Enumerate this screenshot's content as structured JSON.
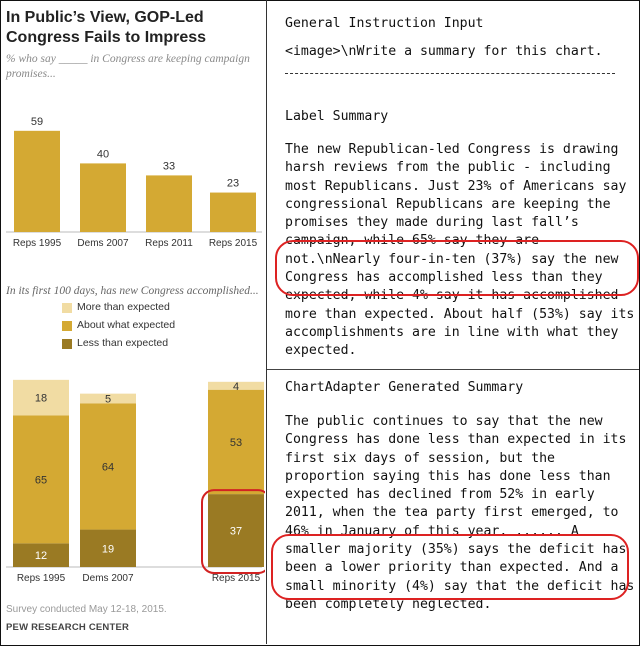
{
  "left": {
    "title": "In Public’s View, GOP-Led Congress Fails to Impress",
    "subtitle": "% who say _____ in Congress are keeping campaign promises...",
    "subtitle2": "In its first 100 days, has new Congress accomplished...",
    "footnote": "Survey conducted May 12-18, 2015.",
    "source": "PEW RESEARCH CENTER"
  },
  "chart_data": [
    {
      "type": "bar",
      "title": "% who say _____ in Congress are keeping campaign promises...",
      "categories": [
        "Reps 1995",
        "Dems 2007",
        "Reps 2011",
        "Reps 2015"
      ],
      "values": [
        59,
        40,
        33,
        23
      ],
      "ylim": [
        0,
        70
      ],
      "color": "#d4a933"
    },
    {
      "type": "bar",
      "stacked": true,
      "title": "In its first 100 days, has new Congress accomplished...",
      "categories": [
        "Reps 1995",
        "Dems 2007",
        "Reps 2015"
      ],
      "series": [
        {
          "name": "Less than expected",
          "values": [
            12,
            19,
            37
          ],
          "color": "#9a7a23"
        },
        {
          "name": "About what expected",
          "values": [
            65,
            64,
            53
          ],
          "color": "#d4a933"
        },
        {
          "name": "More than expected",
          "values": [
            18,
            5,
            4
          ],
          "color": "#f1dca3"
        }
      ],
      "legend_order": [
        "More than expected",
        "About what expected",
        "Less than expected"
      ],
      "legend_position": "top"
    }
  ],
  "right": {
    "section1_heading": "General Instruction Input",
    "section1_text": "<image>\\nWrite a summary for this chart.",
    "section2_heading": "Label Summary",
    "section2_text": "The new Republican-led Congress is drawing harsh reviews from the public - including most Republicans. Just 23% of Americans say congressional Republicans are keeping the promises they made during last fall’s campaign, while 65% say they are not.\\nNearly four-in-ten (37%) say the new Congress has accomplished less than they expected, while 4% say it has accomplished more than expected. About half (53%) say its accomplishments are in line with what they expected.",
    "section3_heading": "ChartAdapter Generated Summary",
    "section3_text": "The public continues to say that the new Congress has done less than expected in its first six days of session, but the proportion saying this has done less than expected has declined from 52% in early 2011, when the tea party first emerged, to 46% in January of this year. ...... A smaller majority (35%) says the deficit has been a lower priority than expected. And a small minority (4%) say that the deficit has been completely neglected."
  },
  "colors": {
    "highlight": "#d22222",
    "bar_mid": "#d4a933",
    "bar_dark": "#9a7a23",
    "bar_light": "#f1dca3"
  }
}
